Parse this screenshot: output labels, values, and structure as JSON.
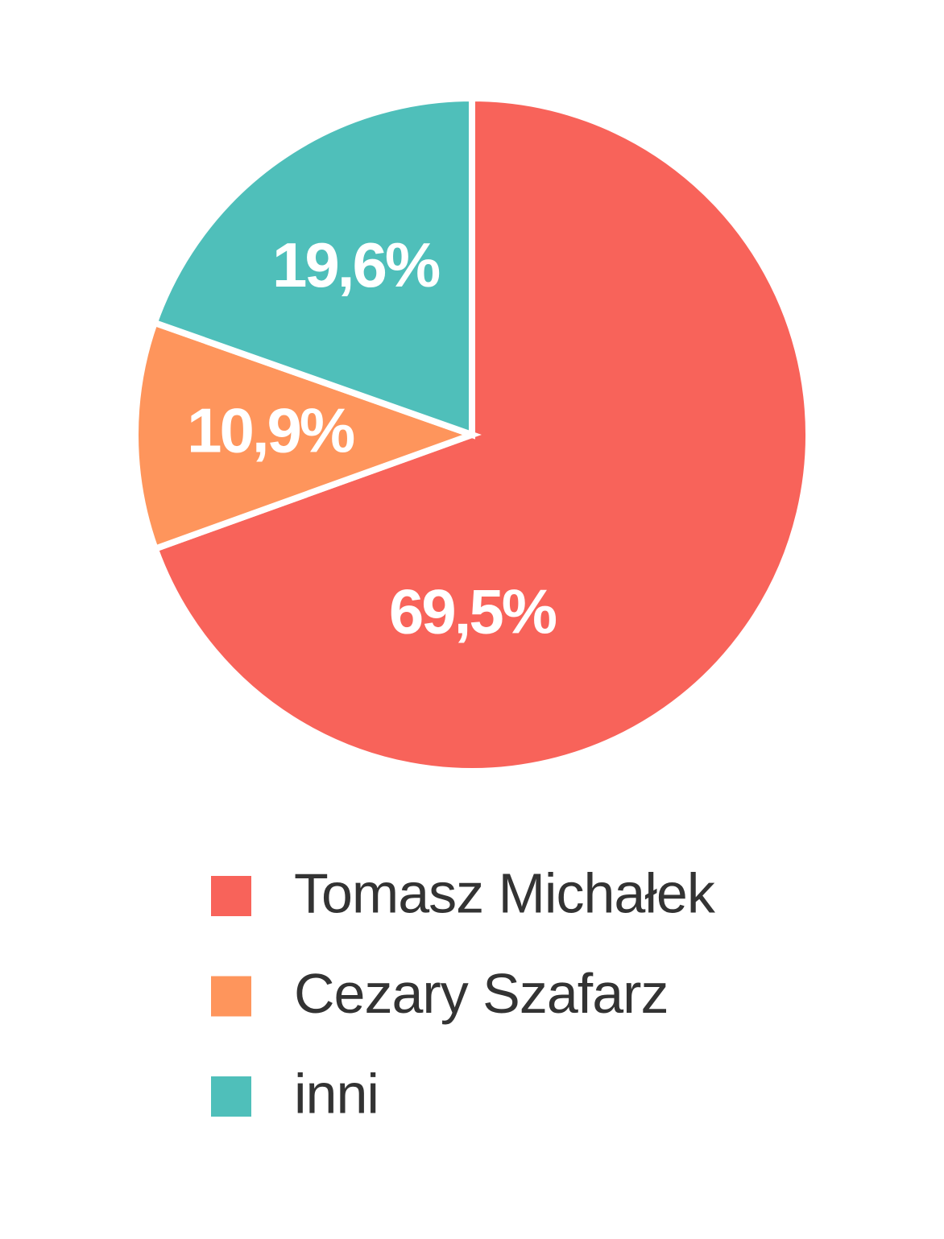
{
  "chart_data": {
    "type": "pie",
    "categories": [
      "Tomasz Michałek",
      "Cezary Szafarz",
      "inni"
    ],
    "values": [
      69.5,
      10.9,
      19.6
    ],
    "value_labels": [
      "69,5%",
      "10,9%",
      "19,6%"
    ],
    "colors": [
      "#f8635a",
      "#fe955c",
      "#4fbfba"
    ]
  }
}
